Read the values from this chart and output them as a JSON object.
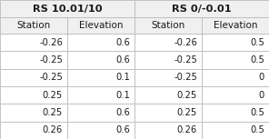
{
  "group1_title": "RS 10.01/10",
  "group2_title": "RS 0/-0.01",
  "col_headers": [
    "Station",
    "Elevation",
    "Station",
    "Elevation"
  ],
  "group1_data": [
    [
      "-0.26",
      "0.6"
    ],
    [
      "-0.25",
      "0.6"
    ],
    [
      "-0.25",
      "0.1"
    ],
    [
      "0.25",
      "0.1"
    ],
    [
      "0.25",
      "0.6"
    ],
    [
      "0.26",
      "0.6"
    ]
  ],
  "group2_data": [
    [
      "-0.26",
      "0.5"
    ],
    [
      "-0.25",
      "0.5"
    ],
    [
      "-0.25",
      "0"
    ],
    [
      "0.25",
      "0"
    ],
    [
      "0.25",
      "0.5"
    ],
    [
      "0.26",
      "0.5"
    ]
  ],
  "background_color": "#ffffff",
  "border_color": "#bbbbbb",
  "header_bg": "#f0f0f0",
  "data_bg": "#ffffff",
  "font_size": 7.2,
  "header_font_size": 7.5,
  "group_font_size": 8.2
}
